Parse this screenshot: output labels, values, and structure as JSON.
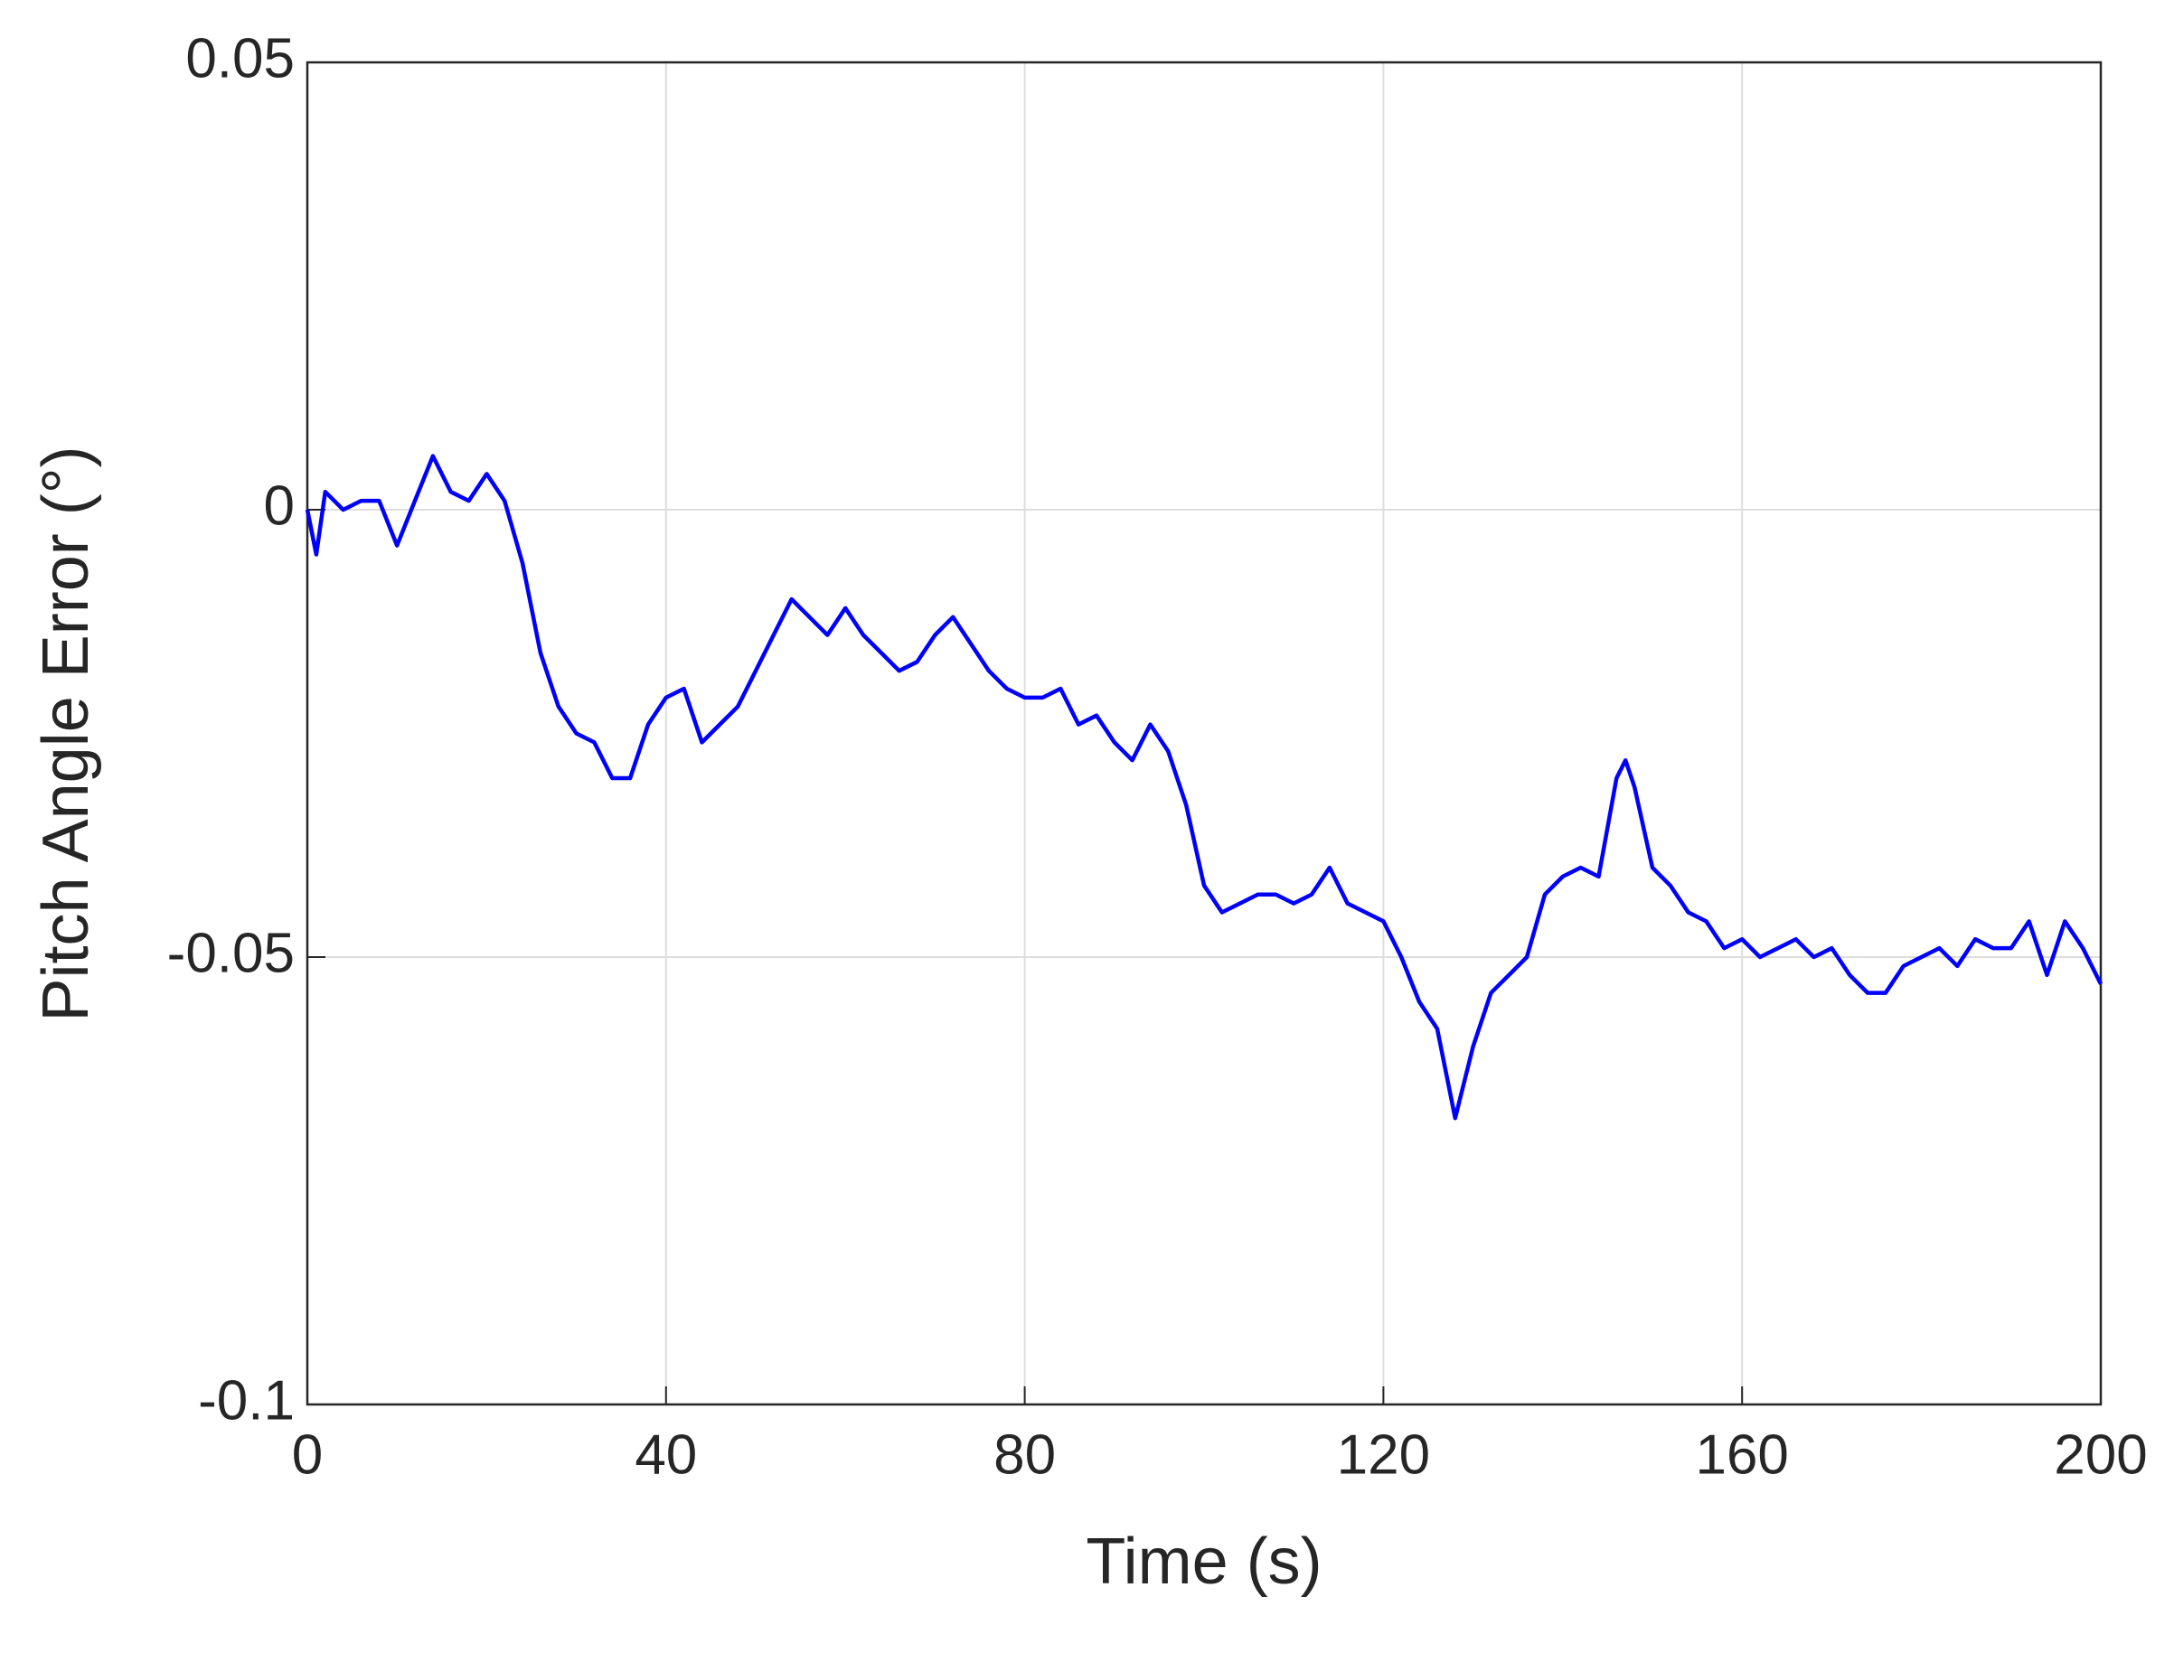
{
  "chart_data": {
    "type": "line",
    "xlabel": "Time (s)",
    "ylabel": "Pitch Angle Error (°)",
    "x": [
      0,
      1,
      2,
      4,
      6,
      8,
      10,
      12,
      14,
      16,
      18,
      20,
      22,
      24,
      26,
      28,
      30,
      32,
      34,
      36,
      38,
      40,
      42,
      44,
      46,
      48,
      50,
      52,
      54,
      56,
      58,
      60,
      62,
      64,
      66,
      68,
      70,
      72,
      74,
      76,
      78,
      80,
      82,
      84,
      86,
      88,
      90,
      92,
      94,
      96,
      98,
      100,
      102,
      104,
      106,
      108,
      110,
      112,
      114,
      116,
      118,
      120,
      122,
      124,
      126,
      128,
      130,
      132,
      134,
      136,
      138,
      140,
      142,
      144,
      146,
      147,
      148,
      150,
      152,
      154,
      156,
      158,
      160,
      162,
      164,
      166,
      168,
      170,
      172,
      174,
      176,
      178,
      180,
      182,
      184,
      186,
      188,
      190,
      192,
      194,
      196,
      198,
      200
    ],
    "series": [
      {
        "name": "Pitch Angle Error",
        "color": "#0000ff",
        "values": [
          0,
          -0.005,
          0.002,
          0,
          0.001,
          0.001,
          -0.004,
          0.001,
          0.006,
          0.002,
          0.001,
          0.004,
          0.001,
          -0.006,
          -0.016,
          -0.022,
          -0.025,
          -0.026,
          -0.03,
          -0.03,
          -0.024,
          -0.021,
          -0.02,
          -0.026,
          -0.024,
          -0.022,
          -0.018,
          -0.014,
          -0.01,
          -0.012,
          -0.014,
          -0.011,
          -0.014,
          -0.016,
          -0.018,
          -0.017,
          -0.014,
          -0.012,
          -0.015,
          -0.018,
          -0.02,
          -0.021,
          -0.021,
          -0.02,
          -0.024,
          -0.023,
          -0.026,
          -0.028,
          -0.024,
          -0.027,
          -0.033,
          -0.042,
          -0.045,
          -0.044,
          -0.043,
          -0.043,
          -0.044,
          -0.043,
          -0.04,
          -0.044,
          -0.045,
          -0.046,
          -0.05,
          -0.055,
          -0.058,
          -0.068,
          -0.06,
          -0.054,
          -0.052,
          -0.05,
          -0.043,
          -0.041,
          -0.04,
          -0.041,
          -0.03,
          -0.028,
          -0.031,
          -0.04,
          -0.042,
          -0.045,
          -0.046,
          -0.049,
          -0.048,
          -0.05,
          -0.049,
          -0.048,
          -0.05,
          -0.049,
          -0.052,
          -0.054,
          -0.054,
          -0.051,
          -0.05,
          -0.049,
          -0.051,
          -0.048,
          -0.049,
          -0.049,
          -0.046,
          -0.052,
          -0.046,
          -0.049,
          -0.053
        ]
      }
    ],
    "xlim": [
      0,
      200
    ],
    "xticks": [
      0,
      40,
      80,
      120,
      160,
      200
    ],
    "ylim": [
      -0.1,
      0.05
    ],
    "yticks": [
      -0.1,
      -0.05,
      0,
      0.05
    ],
    "grid": true
  }
}
